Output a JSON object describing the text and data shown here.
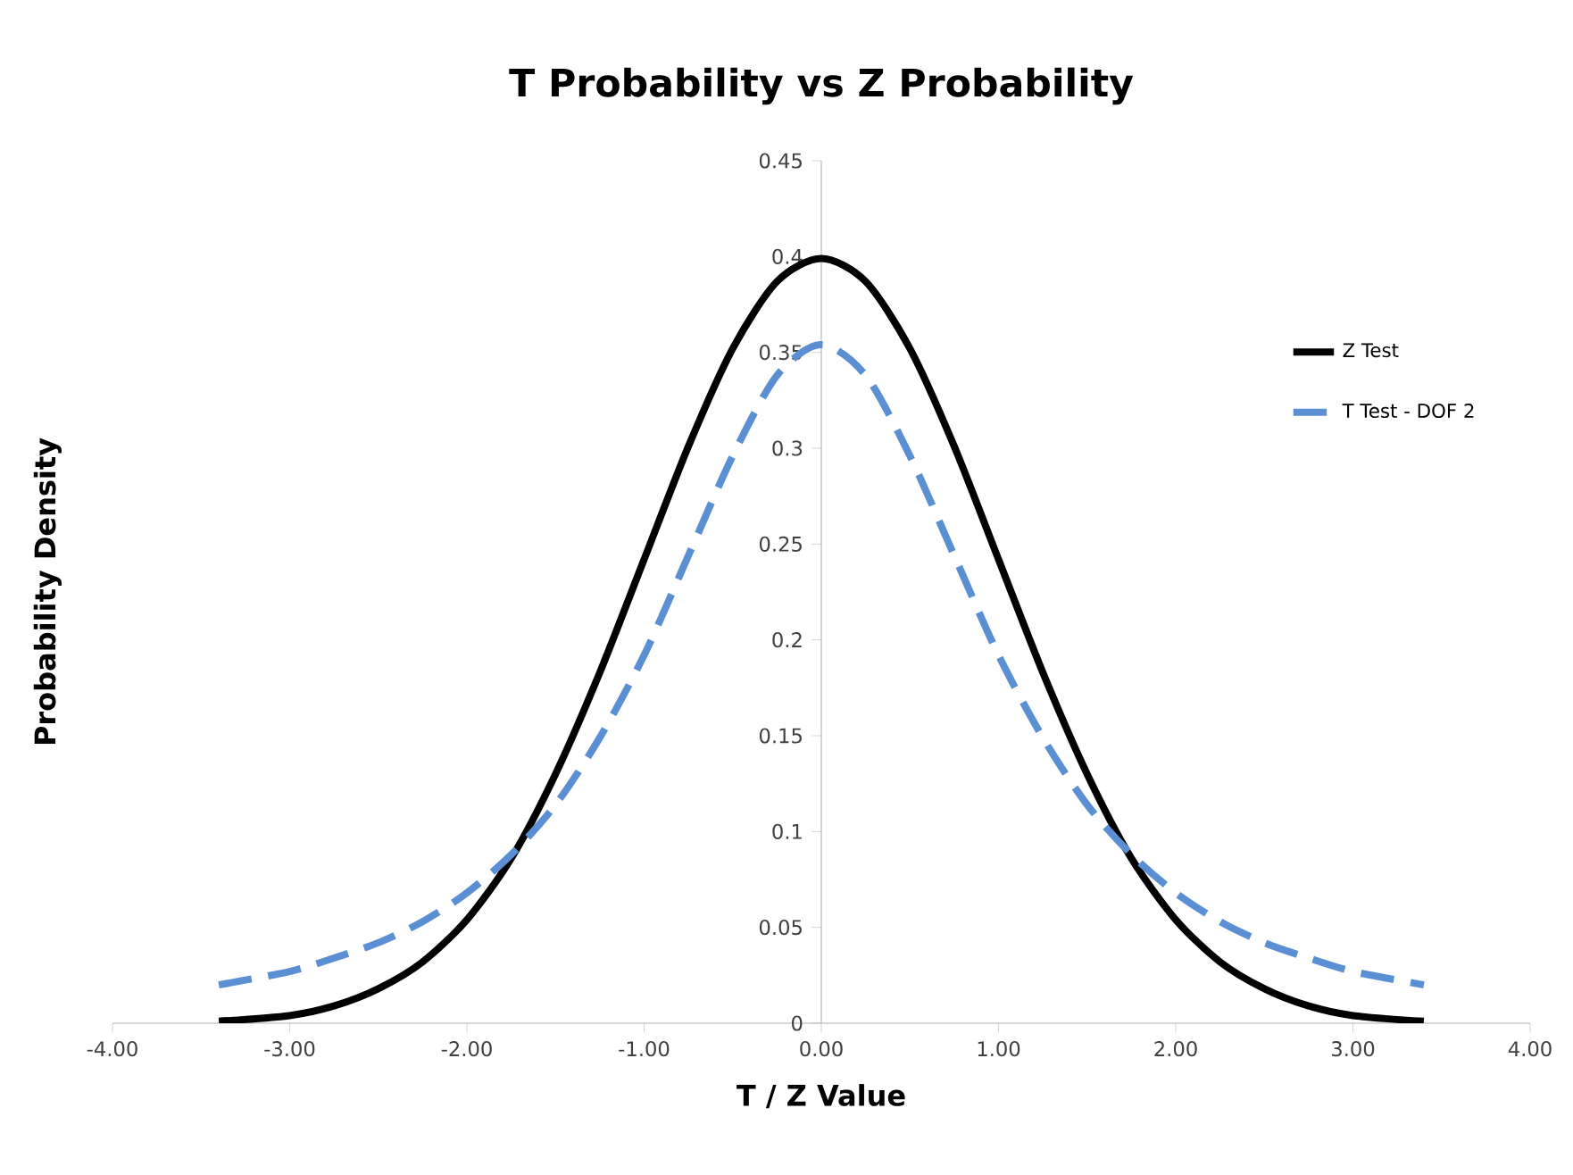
{
  "chart_data": {
    "type": "line",
    "title": "T Probability vs Z Probability",
    "xlabel": "T / Z Value",
    "ylabel": "Probability Density",
    "x": [
      -3.4,
      -3.0,
      -2.75,
      -2.5,
      -2.25,
      -2.0,
      -1.75,
      -1.5,
      -1.25,
      -1.0,
      -0.75,
      -0.5,
      -0.25,
      0.0,
      0.25,
      0.5,
      0.75,
      1.0,
      1.25,
      1.5,
      1.75,
      2.0,
      2.25,
      2.5,
      2.75,
      3.0,
      3.4
    ],
    "series": [
      {
        "name": "Z Test",
        "color": "#000000",
        "line_style": "solid",
        "values": [
          0.001,
          0.004,
          0.009,
          0.018,
          0.032,
          0.054,
          0.086,
          0.13,
          0.183,
          0.242,
          0.301,
          0.352,
          0.387,
          0.399,
          0.387,
          0.352,
          0.301,
          0.242,
          0.183,
          0.13,
          0.086,
          0.054,
          0.032,
          0.018,
          0.009,
          0.004,
          0.001
        ]
      },
      {
        "name": "T Test - DOF 2",
        "color": "#5b8fd4",
        "line_style": "dashed",
        "values": [
          0.02,
          0.027,
          0.034,
          0.042,
          0.053,
          0.068,
          0.088,
          0.114,
          0.149,
          0.192,
          0.244,
          0.296,
          0.338,
          0.354,
          0.338,
          0.296,
          0.244,
          0.192,
          0.149,
          0.114,
          0.088,
          0.068,
          0.053,
          0.042,
          0.034,
          0.027,
          0.02
        ]
      }
    ],
    "xlim": [
      -4,
      4
    ],
    "ylim": [
      0,
      0.45
    ],
    "xticks": [
      {
        "value": -4,
        "label": "-4.00"
      },
      {
        "value": -3,
        "label": "-3.00"
      },
      {
        "value": -2,
        "label": "-2.00"
      },
      {
        "value": -1,
        "label": "-1.00"
      },
      {
        "value": 0,
        "label": "0.00"
      },
      {
        "value": 1,
        "label": "1.00"
      },
      {
        "value": 2,
        "label": "2.00"
      },
      {
        "value": 3,
        "label": "3.00"
      },
      {
        "value": 4,
        "label": "4.00"
      }
    ],
    "yticks": [
      0,
      0.05,
      0.1,
      0.15,
      0.2,
      0.25,
      0.3,
      0.35,
      0.4,
      0.45
    ],
    "grid": false,
    "legend": "top right",
    "marker": "none"
  }
}
